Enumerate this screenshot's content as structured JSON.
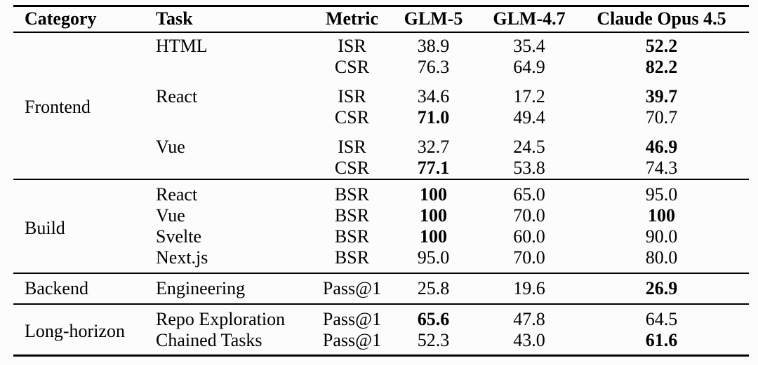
{
  "header": {
    "category": "Category",
    "task": "Task",
    "metric": "Metric",
    "models": [
      "GLM-5",
      "GLM-4.7",
      "Claude Opus 4.5"
    ]
  },
  "sections": [
    {
      "category": "Frontend",
      "rows": [
        {
          "task": "HTML",
          "metric": "ISR",
          "v": [
            "38.9",
            "35.4",
            "52.2"
          ],
          "bold": [
            false,
            false,
            true
          ]
        },
        {
          "metric": "CSR",
          "v": [
            "76.3",
            "64.9",
            "82.2"
          ],
          "bold": [
            false,
            false,
            true
          ]
        },
        {
          "task": "React",
          "metric": "ISR",
          "v": [
            "34.6",
            "17.2",
            "39.7"
          ],
          "bold": [
            false,
            false,
            true
          ]
        },
        {
          "metric": "CSR",
          "v": [
            "71.0",
            "49.4",
            "70.7"
          ],
          "bold": [
            true,
            false,
            false
          ]
        },
        {
          "task": "Vue",
          "metric": "ISR",
          "v": [
            "32.7",
            "24.5",
            "46.9"
          ],
          "bold": [
            false,
            false,
            true
          ]
        },
        {
          "metric": "CSR",
          "v": [
            "77.1",
            "53.8",
            "74.3"
          ],
          "bold": [
            true,
            false,
            false
          ]
        }
      ]
    },
    {
      "category": "Build",
      "rows": [
        {
          "task": "React",
          "metric": "BSR",
          "v": [
            "100",
            "65.0",
            "95.0"
          ],
          "bold": [
            true,
            false,
            false
          ]
        },
        {
          "task": "Vue",
          "metric": "BSR",
          "v": [
            "100",
            "70.0",
            "100"
          ],
          "bold": [
            true,
            false,
            true
          ]
        },
        {
          "task": "Svelte",
          "metric": "BSR",
          "v": [
            "100",
            "60.0",
            "90.0"
          ],
          "bold": [
            true,
            false,
            false
          ]
        },
        {
          "task": "Next.js",
          "metric": "BSR",
          "v": [
            "95.0",
            "70.0",
            "80.0"
          ],
          "bold": [
            false,
            false,
            false
          ]
        }
      ]
    },
    {
      "category": "Backend",
      "rows": [
        {
          "task": "Engineering",
          "metric": "Pass@1",
          "v": [
            "25.8",
            "19.6",
            "26.9"
          ],
          "bold": [
            false,
            false,
            true
          ]
        }
      ]
    },
    {
      "category": "Long-horizon",
      "rows": [
        {
          "task": "Repo Exploration",
          "metric": "Pass@1",
          "v": [
            "65.6",
            "47.8",
            "64.5"
          ],
          "bold": [
            true,
            false,
            false
          ]
        },
        {
          "task": "Chained Tasks",
          "metric": "Pass@1",
          "v": [
            "52.3",
            "43.0",
            "61.6"
          ],
          "bold": [
            false,
            false,
            true
          ]
        }
      ]
    }
  ],
  "colors": {
    "text": "#000000",
    "background": "#fcfcfc",
    "rule": "#000000"
  }
}
